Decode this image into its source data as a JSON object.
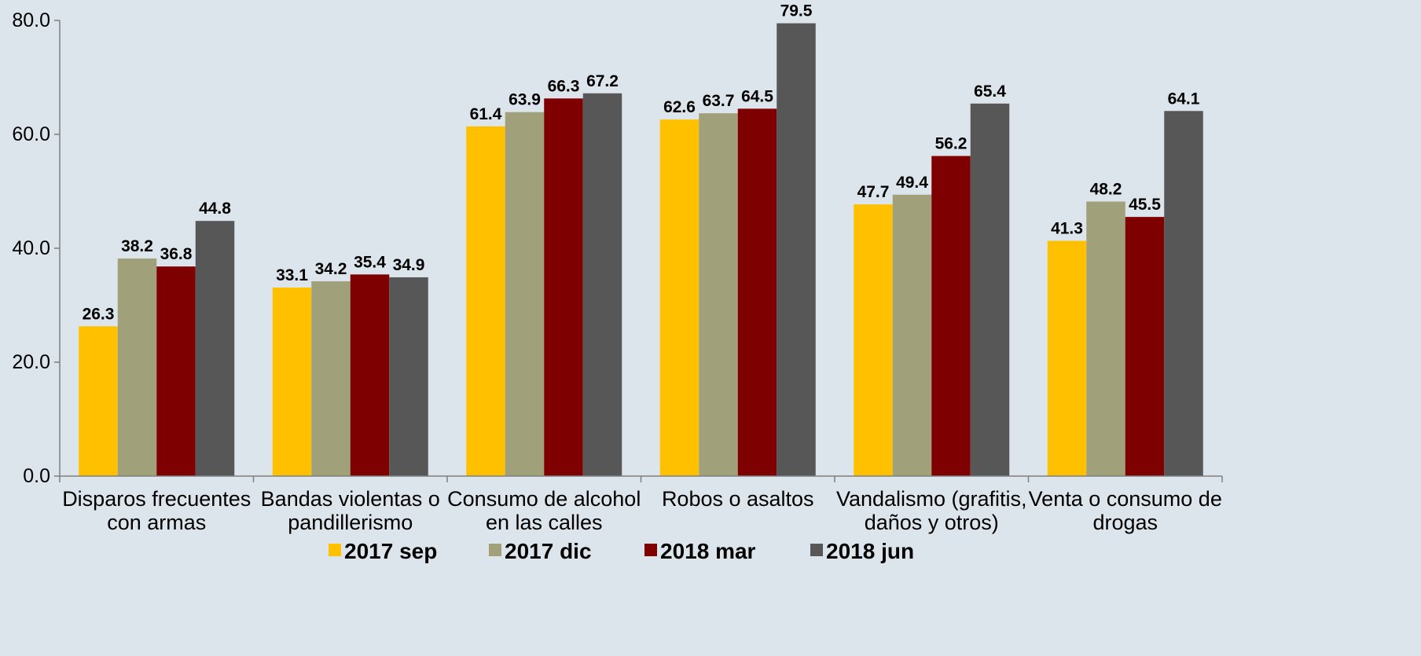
{
  "chart_data": {
    "type": "bar",
    "categories": [
      [
        "Disparos frecuentes",
        "con armas"
      ],
      [
        "Bandas violentas o",
        "pandillerismo"
      ],
      [
        "Consumo de alcohol",
        "en las calles"
      ],
      [
        "Robos o asaltos"
      ],
      [
        "Vandalismo (grafitis,",
        "daños y otros)"
      ],
      [
        "Venta o consumo de",
        "drogas"
      ]
    ],
    "series": [
      {
        "name": "2017 sep",
        "color": "#ffc000",
        "values": [
          26.3,
          33.1,
          61.4,
          62.6,
          47.7,
          41.3
        ]
      },
      {
        "name": "2017 dic",
        "color": "#a0a07a",
        "values": [
          38.2,
          34.2,
          63.9,
          63.7,
          49.4,
          48.2
        ]
      },
      {
        "name": "2018 mar",
        "color": "#7f0000",
        "values": [
          36.8,
          35.4,
          66.3,
          64.5,
          56.2,
          45.5
        ]
      },
      {
        "name": "2018 jun",
        "color": "#575757",
        "values": [
          44.8,
          34.9,
          67.2,
          79.5,
          65.4,
          64.1
        ]
      }
    ],
    "yticks": [
      "0.0",
      "20.0",
      "40.0",
      "60.0",
      "80.0"
    ],
    "ylim": [
      0,
      80
    ],
    "title": "",
    "xlabel": "",
    "ylabel": "",
    "grid": false,
    "legend_position": "bottom",
    "data_labels": true,
    "background_color": "#dde5ec"
  }
}
